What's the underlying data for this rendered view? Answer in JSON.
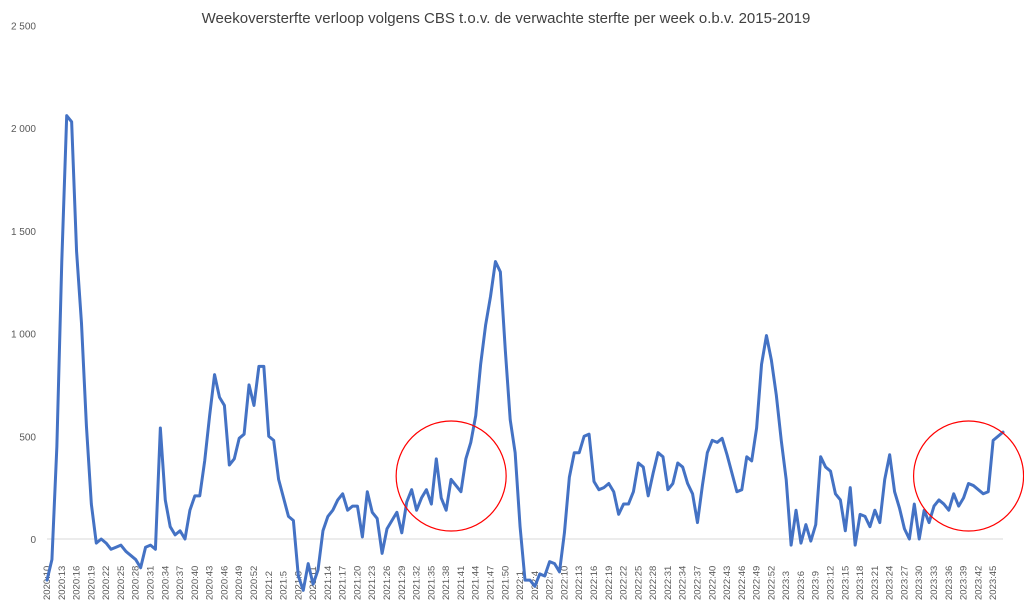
{
  "chart_data": {
    "type": "line",
    "title": "Weekoversterfte verloop volgens CBS t.o.v. de verwachte sterfte per week o.b.v. 2015-2019",
    "xlabel": "",
    "ylabel": "",
    "ylim": [
      -250,
      2500
    ],
    "yticks": [
      0,
      500,
      1000,
      1500,
      2000,
      2500
    ],
    "ytick_labels": [
      "0",
      "500",
      "1 000",
      "1 500",
      "2 000",
      "2 500"
    ],
    "grid": false,
    "legend": "none",
    "line_color": "#4472C4",
    "annotation_color": "#FF0000",
    "x_tick_labels": [
      "2020:10",
      "2020:13",
      "2020:16",
      "2020:19",
      "2020:22",
      "2020:25",
      "2020:28",
      "2020:31",
      "2020:34",
      "2020:37",
      "2020:40",
      "2020:43",
      "2020:46",
      "2020:49",
      "2020:52",
      "2021:2",
      "2021:5",
      "2021:8",
      "2021:11",
      "2021:14",
      "2021:17",
      "2021:20",
      "2021:23",
      "2021:26",
      "2021:29",
      "2021:32",
      "2021:35",
      "2021:38",
      "2021:41",
      "2021:44",
      "2021:47",
      "2021:50",
      "2022:1",
      "2022:4",
      "2022:7",
      "2022:10",
      "2022:13",
      "2022:16",
      "2022:19",
      "2022:22",
      "2022:25",
      "2022:28",
      "2022:31",
      "2022:34",
      "2022:37",
      "2022:40",
      "2022:43",
      "2022:46",
      "2022:49",
      "2022:52",
      "2023:3",
      "2023:6",
      "2023:9",
      "2023:12",
      "2023:15",
      "2023:18",
      "2023:21",
      "2023:24",
      "2023:27",
      "2023:30",
      "2023:33",
      "2023:36",
      "2023:39",
      "2023:42",
      "2023:45"
    ],
    "x_tick_step_weeks": 3,
    "values": [
      -200,
      -100,
      450,
      1350,
      2060,
      2030,
      1400,
      1050,
      550,
      170,
      -20,
      0,
      -20,
      -50,
      -40,
      -30,
      -60,
      -80,
      -100,
      -140,
      -40,
      -30,
      -50,
      540,
      190,
      60,
      20,
      40,
      0,
      140,
      210,
      210,
      380,
      600,
      800,
      690,
      650,
      360,
      390,
      490,
      510,
      750,
      650,
      840,
      840,
      500,
      480,
      290,
      200,
      110,
      90,
      -180,
      -250,
      -120,
      -220,
      -150,
      40,
      110,
      140,
      190,
      220,
      140,
      160,
      160,
      10,
      230,
      130,
      100,
      -70,
      50,
      90,
      130,
      30,
      180,
      240,
      140,
      200,
      240,
      170,
      390,
      200,
      140,
      290,
      260,
      230,
      390,
      470,
      600,
      850,
      1040,
      1180,
      1350,
      1300,
      920,
      580,
      420,
      60,
      -200,
      -200,
      -230,
      -170,
      -180,
      -110,
      -120,
      -160,
      30,
      300,
      420,
      420,
      500,
      510,
      280,
      240,
      250,
      270,
      230,
      120,
      170,
      170,
      230,
      370,
      350,
      210,
      320,
      420,
      400,
      240,
      270,
      370,
      350,
      270,
      220,
      80,
      260,
      420,
      480,
      470,
      490,
      410,
      320,
      230,
      240,
      400,
      380,
      540,
      850,
      990,
      870,
      700,
      480,
      290,
      -30,
      140,
      -20,
      70,
      -10,
      70,
      400,
      350,
      330,
      220,
      190,
      40,
      250,
      -30,
      120,
      110,
      60,
      140,
      80,
      290,
      410,
      230,
      150,
      50,
      0,
      170,
      0,
      140,
      80,
      160,
      190,
      170,
      140,
      220,
      160,
      200,
      270,
      260,
      240,
      220,
      230,
      480,
      500,
      520
    ],
    "annotations": [
      {
        "type": "circle",
        "near": "2021:38"
      },
      {
        "type": "circle",
        "near": "2023:39"
      }
    ]
  }
}
